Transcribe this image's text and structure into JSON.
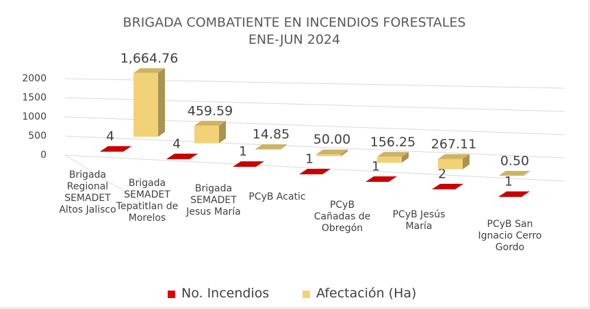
{
  "chart_data": {
    "type": "bar3d",
    "title": "BRIGADA COMBATIENTE EN INCENDIOS FORESTALES",
    "subtitle": "ENE-JUN 2024",
    "categories": [
      "Brigada Regional SEMADET Altos Jalisco",
      "Brigada SEMADET Tepatitlan de Morelos",
      "Brigada SEMADET Jesus María",
      "PCyB Acatic",
      "PCyB Cañadas de Obregón",
      "PCyB Jesús María",
      "PCyB San Ignacio Cerro Gordo"
    ],
    "series": [
      {
        "name": "No. Incendios",
        "color": "#e00000",
        "values": [
          4,
          4,
          1,
          1,
          1,
          2,
          1
        ]
      },
      {
        "name": "Afectación (Ha)",
        "color": "#f2d276",
        "values": [
          1664.76,
          459.59,
          14.85,
          50.0,
          156.25,
          267.11,
          0.5
        ],
        "value_labels": [
          "1,664.76",
          "459.59",
          "14.85",
          "50.00",
          "156.25",
          "267.11",
          "0.50"
        ]
      }
    ],
    "ylim": [
      0,
      2000
    ],
    "yticks": [
      0,
      500,
      1000,
      1500,
      2000
    ],
    "grid": true,
    "legend": "bottom"
  }
}
